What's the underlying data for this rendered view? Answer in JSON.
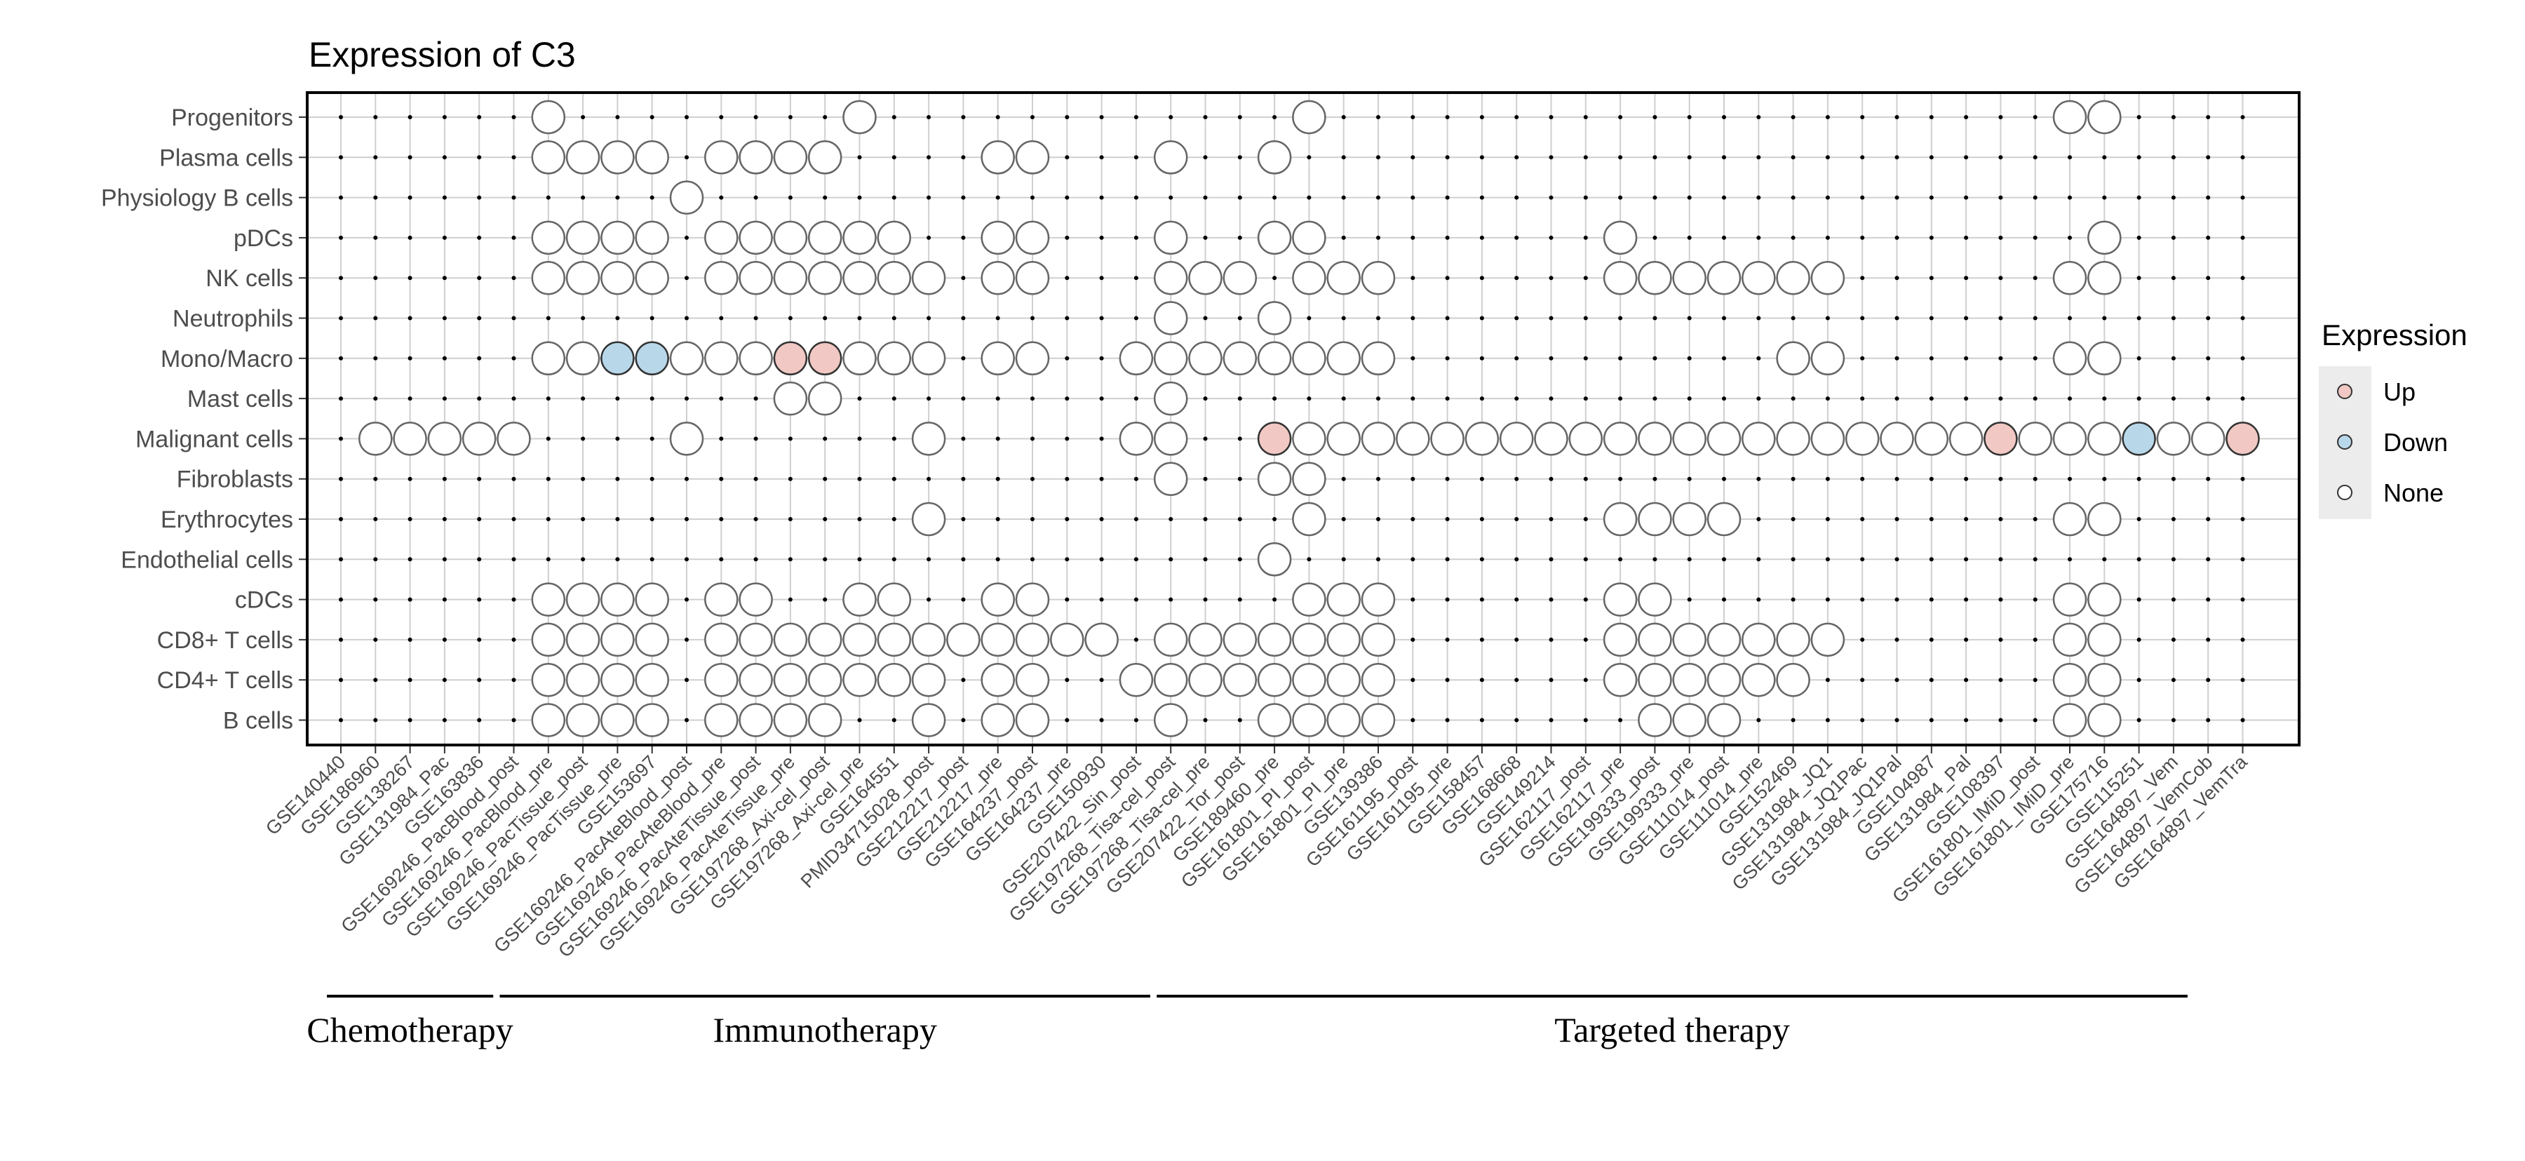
{
  "chart_data": {
    "type": "dot-matrix",
    "title": "Expression of C3",
    "legend": {
      "title": "Expression",
      "placement": "right",
      "items": [
        {
          "label": "Up",
          "color": "#f1c8c3"
        },
        {
          "label": "Down",
          "color": "#b8d8ea"
        },
        {
          "label": "None",
          "color": "#ffffff"
        }
      ]
    },
    "rows": [
      "Progenitors",
      "Plasma cells",
      "Physiology B cells",
      "pDCs",
      "NK cells",
      "Neutrophils",
      "Mono/Macro",
      "Mast cells",
      "Malignant cells",
      "Fibroblasts",
      "Erythrocytes",
      "Endothelial cells",
      "cDCs",
      "CD8+ T cells",
      "CD4+ T cells",
      "B cells"
    ],
    "columns": [
      "GSE140440",
      "GSE186960",
      "GSE138267",
      "GSE131984_Pac",
      "GSE163836",
      "GSE169246_PacBlood_post",
      "GSE169246_PacBlood_pre",
      "GSE169246_PacTissue_post",
      "GSE169246_PacTissue_pre",
      "GSE153697",
      "GSE169246_PacAteBlood_post",
      "GSE169246_PacAteBlood_pre",
      "GSE169246_PacAteTissue_post",
      "GSE169246_PacAteTissue_pre",
      "GSE197268_Axi-cel_post",
      "GSE197268_Axi-cel_pre",
      "GSE164551",
      "PMID34715028_post",
      "GSE212217_post",
      "GSE212217_pre",
      "GSE164237_post",
      "GSE164237_pre",
      "GSE150930",
      "GSE207422_Sin_post",
      "GSE197268_Tisa-cel_post",
      "GSE197268_Tisa-cel_pre",
      "GSE207422_Tor_post",
      "GSE189460_pre",
      "GSE161801_PI_post",
      "GSE161801_PI_pre",
      "GSE139386",
      "GSE161195_post",
      "GSE161195_pre",
      "GSE158457",
      "GSE168668",
      "GSE149214",
      "GSE162117_post",
      "GSE162117_pre",
      "GSE199333_post",
      "GSE199333_pre",
      "GSE111014_post",
      "GSE111014_pre",
      "GSE152469",
      "GSE131984_JQ1",
      "GSE131984_JQ1Pac",
      "GSE131984_JQ1Pal",
      "GSE104987",
      "GSE131984_Pal",
      "GSE108397",
      "GSE161801_IMiD_post",
      "GSE161801_IMiD_pre",
      "GSE175716",
      "GSE115251",
      "GSE164897_Vem",
      "GSE164897_VemCob",
      "GSE164897_VemTra"
    ],
    "groups": [
      {
        "label": "Chemotherapy",
        "start": 0,
        "end": 4
      },
      {
        "label": "Immunotherapy",
        "start": 5,
        "end": 23
      },
      {
        "label": "Targeted therapy",
        "start": 24,
        "end": 53
      }
    ],
    "points": {
      "Progenitors": {
        "None": [
          6,
          15,
          28,
          50,
          51
        ]
      },
      "Plasma cells": {
        "None": [
          6,
          7,
          8,
          9,
          11,
          12,
          13,
          14,
          19,
          20,
          24,
          27
        ]
      },
      "Physiology B cells": {
        "None": [
          10
        ]
      },
      "pDCs": {
        "None": [
          6,
          7,
          8,
          9,
          11,
          12,
          13,
          14,
          15,
          16,
          19,
          20,
          24,
          27,
          28,
          37,
          51
        ]
      },
      "NK cells": {
        "None": [
          6,
          7,
          8,
          9,
          11,
          12,
          13,
          14,
          15,
          16,
          17,
          19,
          20,
          24,
          25,
          26,
          28,
          29,
          30,
          37,
          38,
          39,
          40,
          41,
          42,
          43,
          50,
          51
        ]
      },
      "Neutrophils": {
        "None": [
          24,
          27
        ]
      },
      "Mono/Macro": {
        "None": [
          6,
          7,
          10,
          11,
          12,
          15,
          16,
          17,
          19,
          20,
          23,
          24,
          25,
          26,
          27,
          28,
          29,
          30,
          42,
          43,
          50,
          51
        ],
        "Up": [
          13,
          14
        ],
        "Down": [
          8,
          9
        ]
      },
      "Mast cells": {
        "None": [
          13,
          14,
          24
        ]
      },
      "Malignant cells": {
        "None": [
          1,
          2,
          3,
          4,
          5,
          10,
          17,
          23,
          24,
          28,
          29,
          30,
          31,
          32,
          33,
          34,
          35,
          36,
          37,
          38,
          39,
          40,
          41,
          42,
          43,
          44,
          45,
          46,
          47,
          49,
          50,
          51,
          53,
          54
        ],
        "Up": [
          27,
          48,
          55
        ],
        "Down": [
          52
        ]
      },
      "Fibroblasts": {
        "None": [
          24,
          27,
          28
        ]
      },
      "Erythrocytes": {
        "None": [
          17,
          28,
          37,
          38,
          39,
          40,
          50,
          51
        ]
      },
      "Endothelial cells": {
        "None": [
          27
        ]
      },
      "cDCs": {
        "None": [
          6,
          7,
          8,
          9,
          11,
          12,
          15,
          16,
          19,
          20,
          28,
          29,
          30,
          37,
          38,
          50,
          51
        ]
      },
      "CD8+ T cells": {
        "None": [
          6,
          7,
          8,
          9,
          11,
          12,
          13,
          14,
          15,
          16,
          17,
          18,
          19,
          20,
          21,
          22,
          24,
          25,
          26,
          27,
          28,
          29,
          30,
          37,
          38,
          39,
          40,
          41,
          42,
          43,
          50,
          51
        ]
      },
      "CD4+ T cells": {
        "None": [
          6,
          7,
          8,
          9,
          11,
          12,
          13,
          14,
          15,
          16,
          17,
          19,
          20,
          23,
          24,
          25,
          26,
          27,
          28,
          29,
          30,
          37,
          38,
          39,
          40,
          41,
          42,
          50,
          51
        ]
      },
      "B cells": {
        "None": [
          6,
          7,
          8,
          9,
          11,
          12,
          13,
          14,
          17,
          19,
          20,
          24,
          27,
          28,
          29,
          30,
          38,
          39,
          40,
          50,
          51
        ]
      }
    }
  }
}
